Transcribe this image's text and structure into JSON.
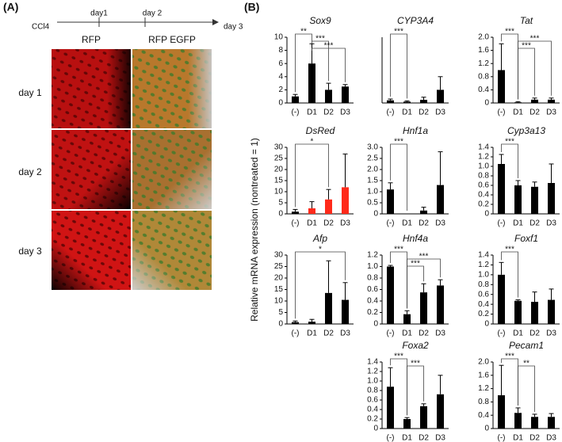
{
  "panel_a": {
    "label": "(A)",
    "timeline": {
      "start": "CCl4",
      "marks": [
        "day1",
        "day 2"
      ],
      "end": "day 3"
    },
    "columns": [
      "RFP",
      "RFP EGFP"
    ],
    "rows": [
      "day 1",
      "day 2",
      "day 3"
    ]
  },
  "panel_b": {
    "label": "(B)",
    "ylabel": "Relative mRNA expression (nontreated = 1)"
  },
  "chart_data": [
    {
      "type": "bar",
      "title": "Sox9",
      "categories": [
        "(-)",
        "D1",
        "D2",
        "D3"
      ],
      "values": [
        1,
        6,
        2,
        2.5
      ],
      "errors": [
        0.3,
        3,
        1,
        0.3
      ],
      "color": "#000000",
      "ylim": [
        0,
        10
      ],
      "yticks": [
        0,
        2,
        4,
        6,
        8,
        10
      ],
      "significance": [
        {
          "between": [
            0,
            1
          ],
          "label": "**"
        },
        {
          "between": [
            1,
            2
          ],
          "label": "***"
        },
        {
          "between": [
            1,
            3
          ],
          "label": "***"
        }
      ]
    },
    {
      "type": "bar",
      "title": "CYP3A4",
      "categories": [
        "(-)",
        "D1",
        "D2",
        "D3"
      ],
      "values": [
        1,
        0.5,
        1.2,
        5
      ],
      "errors": [
        0.5,
        0.3,
        1,
        5
      ],
      "color": "#000000",
      "ylim": [
        0,
        25
      ],
      "significance": [
        {
          "between": [
            0,
            1
          ],
          "label": "***"
        }
      ]
    },
    {
      "type": "bar",
      "title": "Tat",
      "categories": [
        "(-)",
        "D1",
        "D2",
        "D3"
      ],
      "values": [
        1,
        0.02,
        0.1,
        0.1
      ],
      "errors": [
        0.8,
        0.02,
        0.05,
        0.05
      ],
      "color": "#000000",
      "ylim": [
        0,
        2
      ],
      "yticks": [
        0,
        0.4,
        0.8,
        1.2,
        1.6,
        {
          "value": 2,
          "label": "2.0"
        }
      ],
      "significance": [
        {
          "between": [
            0,
            1
          ],
          "label": "***"
        },
        {
          "between": [
            1,
            3
          ],
          "label": "***"
        },
        {
          "between": [
            1,
            2
          ],
          "label": "***"
        }
      ]
    },
    {
      "type": "bar",
      "title": "DsRed",
      "categories": [
        "(-)",
        "D1",
        "D2",
        "D3"
      ],
      "values": [
        1,
        2.5,
        6.5,
        12
      ],
      "errors": [
        1,
        3,
        4.5,
        15
      ],
      "color": "#000000",
      "colors": [
        "#000000",
        "#ff2a1a",
        "#ff2a1a",
        "#ff2a1a"
      ],
      "ylim": [
        0,
        30
      ],
      "yticks": [
        0,
        5,
        10,
        15,
        20,
        25,
        30
      ],
      "significance": [
        {
          "between": [
            0,
            2
          ],
          "label": "*"
        }
      ]
    },
    {
      "type": "bar",
      "title": "Hnf1a",
      "categories": [
        "(-)",
        "D1",
        "D2",
        "D3"
      ],
      "values": [
        1.1,
        0,
        0.15,
        1.3
      ],
      "errors": [
        0.3,
        0,
        0.15,
        1.5
      ],
      "color": "#000000",
      "ylim": [
        0,
        3
      ],
      "yticks": [
        0,
        0.5,
        {
          "value": 1,
          "label": "1.0"
        },
        1.5,
        {
          "value": 2,
          "label": "2.0"
        },
        2.5,
        {
          "value": 3,
          "label": "3.0"
        }
      ],
      "significance": [
        {
          "between": [
            0,
            1
          ],
          "label": "***"
        }
      ]
    },
    {
      "type": "bar",
      "title": "Cyp3a13",
      "categories": [
        "(-)",
        "D1",
        "D2",
        "D3"
      ],
      "values": [
        1.05,
        0.6,
        0.57,
        0.65
      ],
      "errors": [
        0.2,
        0.1,
        0.1,
        0.4
      ],
      "color": "#000000",
      "ylim": [
        0,
        1.4
      ],
      "yticks": [
        0,
        0.2,
        0.4,
        0.6,
        0.8,
        {
          "value": 1,
          "label": "1.0"
        },
        1.2,
        1.4
      ],
      "significance": [
        {
          "between": [
            0,
            1
          ],
          "label": "***"
        }
      ]
    },
    {
      "type": "bar",
      "title": "Afp",
      "categories": [
        "(-)",
        "D1",
        "D2",
        "D3"
      ],
      "values": [
        0.8,
        1,
        13.5,
        10.5
      ],
      "errors": [
        0.5,
        1,
        14,
        7.5
      ],
      "color": "#000000",
      "ylim": [
        0,
        30
      ],
      "yticks": [
        0,
        5,
        10,
        15,
        20,
        25,
        30
      ],
      "significance": [
        {
          "between": [
            0,
            3
          ],
          "label": "*"
        }
      ]
    },
    {
      "type": "bar",
      "title": "Hnf4a",
      "categories": [
        "(-)",
        "D1",
        "D2",
        "D3"
      ],
      "values": [
        1,
        0.17,
        0.55,
        0.67
      ],
      "errors": [
        0.02,
        0.06,
        0.15,
        0.1
      ],
      "color": "#000000",
      "ylim": [
        0,
        1.2
      ],
      "yticks": [
        0,
        0.2,
        0.4,
        0.6,
        0.8,
        {
          "value": 1,
          "label": "1.0"
        },
        1.2
      ],
      "significance": [
        {
          "between": [
            0,
            1
          ],
          "label": "***"
        },
        {
          "between": [
            1,
            3
          ],
          "label": "***"
        },
        {
          "between": [
            1,
            2
          ],
          "label": "***"
        }
      ]
    },
    {
      "type": "bar",
      "title": "Foxf1",
      "categories": [
        "(-)",
        "D1",
        "D2",
        "D3"
      ],
      "values": [
        1,
        0.47,
        0.45,
        0.49
      ],
      "errors": [
        0.25,
        0.02,
        0.2,
        0.22
      ],
      "color": "#000000",
      "ylim": [
        0,
        1.4
      ],
      "yticks": [
        0,
        0.2,
        0.4,
        0.6,
        0.8,
        {
          "value": 1,
          "label": "1.0"
        },
        1.2,
        1.4
      ],
      "significance": [
        {
          "between": [
            0,
            1
          ],
          "label": "***"
        }
      ]
    },
    {
      "type": "bar",
      "title": "Foxa2",
      "categories": [
        "(-)",
        "D1",
        "D2",
        "D3"
      ],
      "values": [
        0.88,
        0.2,
        0.47,
        0.72
      ],
      "errors": [
        0.4,
        0.03,
        0.05,
        0.4
      ],
      "color": "#000000",
      "ylim": [
        0,
        1.4
      ],
      "yticks": [
        0,
        0.2,
        0.4,
        0.6,
        0.8,
        {
          "value": 1,
          "label": "1.0"
        },
        1.2,
        1.4
      ],
      "significance": [
        {
          "between": [
            0,
            1
          ],
          "label": "***"
        },
        {
          "between": [
            1,
            2
          ],
          "label": "***"
        }
      ]
    },
    {
      "type": "bar",
      "title": "Pecam1",
      "categories": [
        "(-)",
        "D1",
        "D2",
        "D3"
      ],
      "values": [
        1,
        0.47,
        0.35,
        0.35
      ],
      "errors": [
        0.9,
        0.15,
        0.08,
        0.1
      ],
      "color": "#000000",
      "ylim": [
        0,
        2
      ],
      "yticks": [
        0,
        0.4,
        0.8,
        1.2,
        1.6,
        {
          "value": 2,
          "label": "2.0"
        }
      ],
      "significance": [
        {
          "between": [
            0,
            1
          ],
          "label": "***"
        },
        {
          "between": [
            1,
            2
          ],
          "label": "**"
        }
      ]
    }
  ]
}
